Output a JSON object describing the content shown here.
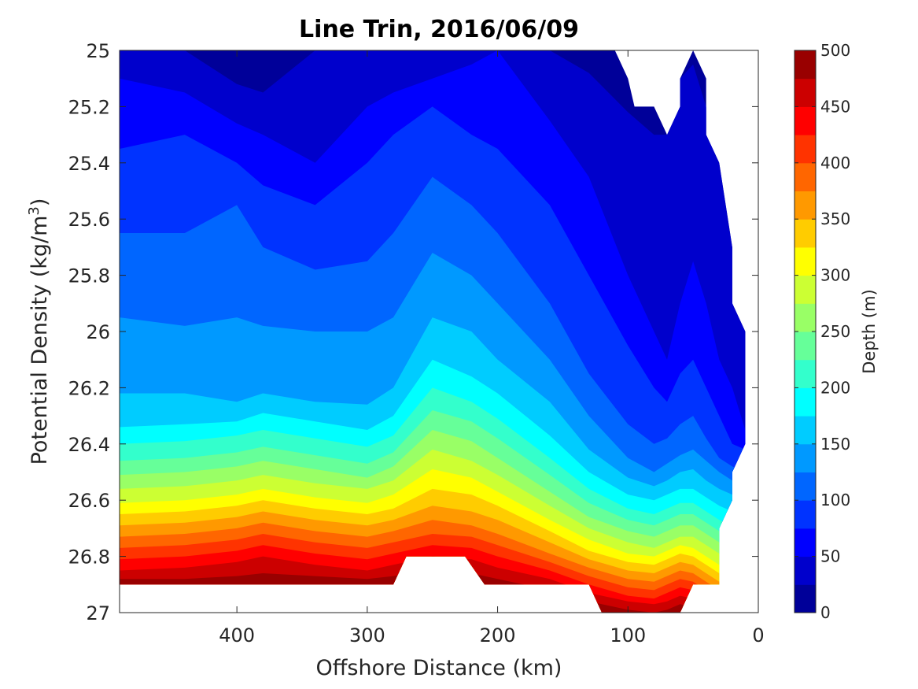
{
  "chart_data": {
    "type": "heatmap",
    "subtype": "filled-contour",
    "title": "Line Trin, 2016/06/09",
    "xlabel": "Offshore Distance (km)",
    "ylabel": "Potential Density (kg/m3)",
    "ylabel_main": "Potential Density (kg/m",
    "ylabel_sup": "3",
    "ylabel_close": ")",
    "x_reversed": true,
    "y_reversed": true,
    "xlim": [
      490,
      0
    ],
    "ylim": [
      25,
      27
    ],
    "xticks": [
      400,
      300,
      200,
      100,
      0
    ],
    "yticks": [
      "25",
      "25.2",
      "25.4",
      "25.6",
      "25.8",
      "26",
      "26.2",
      "26.4",
      "26.6",
      "26.8",
      "27"
    ],
    "grid": false,
    "colorbar": {
      "label": "Depth (m)",
      "range": [
        0,
        500
      ],
      "levels": 20,
      "ticks": [
        0,
        50,
        100,
        150,
        200,
        250,
        300,
        350,
        400,
        450,
        500
      ],
      "colormap": "jet"
    },
    "x": [
      490,
      440,
      400,
      380,
      340,
      300,
      280,
      250,
      220,
      200,
      160,
      130,
      100,
      80,
      70,
      60,
      50,
      40,
      30,
      20,
      10
    ],
    "depth_contours": [
      {
        "depth": 25,
        "y": [
          25.0,
          25.0,
          25.12,
          25.15,
          25.0,
          25.0,
          25.0,
          25.0,
          25.0,
          25.0,
          25.0,
          25.08,
          25.22,
          25.3,
          25.3,
          25.1,
          25.05,
          25.2,
          25.4,
          25.7,
          25.9
        ]
      },
      {
        "depth": 50,
        "y": [
          25.1,
          25.15,
          25.26,
          25.3,
          25.4,
          25.2,
          25.15,
          25.1,
          25.05,
          25.0,
          25.25,
          25.45,
          25.8,
          26.0,
          26.1,
          25.9,
          25.75,
          25.9,
          26.1,
          26.2,
          26.35
        ]
      },
      {
        "depth": 75,
        "y": [
          25.35,
          25.3,
          25.4,
          25.48,
          25.55,
          25.4,
          25.3,
          25.2,
          25.3,
          25.35,
          25.55,
          25.8,
          26.05,
          26.2,
          26.25,
          26.15,
          26.1,
          26.2,
          26.3,
          26.4,
          26.42
        ]
      },
      {
        "depth": 100,
        "y": [
          25.65,
          25.65,
          25.55,
          25.7,
          25.78,
          25.75,
          25.65,
          25.45,
          25.55,
          25.65,
          25.9,
          26.15,
          26.33,
          26.4,
          26.38,
          26.33,
          26.3,
          26.38,
          26.45,
          26.48,
          26.5
        ]
      },
      {
        "depth": 125,
        "y": [
          25.95,
          25.98,
          25.95,
          25.98,
          26.0,
          26.0,
          25.95,
          25.72,
          25.8,
          25.9,
          26.1,
          26.3,
          26.45,
          26.5,
          26.47,
          26.44,
          26.42,
          26.46,
          26.5,
          26.53,
          26.55
        ]
      },
      {
        "depth": 150,
        "y": [
          26.22,
          26.22,
          26.25,
          26.22,
          26.25,
          26.26,
          26.2,
          25.95,
          26.0,
          26.1,
          26.25,
          26.42,
          26.52,
          26.55,
          26.53,
          26.5,
          26.49,
          26.53,
          26.56,
          26.58,
          26.6
        ]
      },
      {
        "depth": 175,
        "y": [
          26.34,
          26.33,
          26.32,
          26.29,
          26.32,
          26.35,
          26.3,
          26.1,
          26.16,
          26.22,
          26.37,
          26.5,
          26.58,
          26.6,
          26.58,
          26.56,
          26.56,
          26.59,
          26.62,
          26.64,
          26.66
        ]
      },
      {
        "depth": 200,
        "y": [
          26.4,
          26.39,
          26.37,
          26.35,
          26.38,
          26.41,
          26.37,
          26.2,
          26.25,
          26.31,
          26.45,
          26.56,
          26.63,
          26.65,
          26.63,
          26.61,
          26.61,
          26.64,
          26.67,
          26.69,
          26.71
        ]
      },
      {
        "depth": 225,
        "y": [
          26.46,
          26.45,
          26.43,
          26.41,
          26.44,
          26.47,
          26.43,
          26.28,
          26.32,
          26.38,
          26.51,
          26.61,
          26.67,
          26.69,
          26.67,
          26.65,
          26.65,
          26.68,
          26.71,
          26.73,
          26.75
        ]
      },
      {
        "depth": 250,
        "y": [
          26.51,
          26.5,
          26.48,
          26.46,
          26.49,
          26.52,
          26.48,
          26.35,
          26.39,
          26.45,
          26.57,
          26.66,
          26.71,
          26.73,
          26.71,
          26.69,
          26.69,
          26.72,
          26.75,
          26.77,
          26.79
        ]
      },
      {
        "depth": 275,
        "y": [
          26.56,
          26.55,
          26.53,
          26.51,
          26.54,
          26.56,
          26.53,
          26.42,
          26.46,
          26.51,
          26.62,
          26.7,
          26.75,
          26.77,
          26.75,
          26.73,
          26.73,
          26.76,
          26.79,
          26.81,
          26.83
        ]
      },
      {
        "depth": 300,
        "y": [
          26.61,
          26.6,
          26.58,
          26.56,
          26.59,
          26.61,
          26.58,
          26.49,
          26.52,
          26.57,
          26.67,
          26.74,
          26.79,
          26.8,
          26.78,
          26.76,
          26.77,
          26.8,
          26.83,
          26.85,
          26.87
        ]
      },
      {
        "depth": 325,
        "y": [
          26.65,
          26.64,
          26.62,
          26.6,
          26.63,
          26.65,
          26.63,
          26.56,
          26.58,
          26.62,
          26.71,
          26.78,
          26.82,
          26.83,
          26.81,
          26.79,
          26.8,
          26.83,
          26.86,
          26.88,
          26.9
        ]
      },
      {
        "depth": 350,
        "y": [
          26.69,
          26.68,
          26.66,
          26.64,
          26.67,
          26.69,
          26.67,
          26.62,
          26.64,
          26.67,
          26.75,
          26.81,
          26.85,
          26.86,
          26.84,
          26.82,
          26.83,
          26.86,
          26.89,
          26.91,
          26.93
        ]
      },
      {
        "depth": 375,
        "y": [
          26.73,
          26.72,
          26.7,
          26.68,
          26.71,
          26.73,
          26.71,
          26.67,
          26.69,
          26.72,
          26.79,
          26.84,
          26.88,
          26.89,
          26.87,
          26.85,
          26.86,
          26.89,
          26.92,
          26.94,
          26.96
        ]
      },
      {
        "depth": 400,
        "y": [
          26.77,
          26.76,
          26.74,
          26.72,
          26.75,
          26.77,
          26.75,
          26.72,
          26.73,
          26.76,
          26.82,
          26.87,
          26.91,
          26.92,
          26.9,
          26.88,
          26.89,
          26.92,
          26.95,
          26.97,
          26.99
        ]
      },
      {
        "depth": 425,
        "y": [
          26.81,
          26.8,
          26.78,
          26.76,
          26.79,
          26.81,
          26.79,
          26.76,
          26.77,
          26.8,
          26.85,
          26.9,
          26.94,
          26.95,
          26.93,
          26.91,
          26.92,
          26.95,
          26.98,
          27.0,
          27.02
        ]
      },
      {
        "depth": 450,
        "y": [
          26.85,
          26.84,
          26.82,
          26.8,
          26.83,
          26.85,
          26.83,
          26.8,
          26.81,
          26.84,
          26.88,
          26.93,
          26.96,
          26.97,
          26.96,
          26.94,
          26.95,
          26.98,
          27.01,
          27.03,
          27.05
        ]
      },
      {
        "depth": 475,
        "y": [
          26.88,
          26.88,
          26.87,
          26.86,
          26.87,
          26.88,
          26.87,
          26.85,
          26.86,
          26.88,
          26.92,
          26.96,
          26.99,
          27.0,
          26.99,
          26.97,
          26.98,
          27.01,
          27.04,
          27.06,
          27.08
        ]
      }
    ],
    "data_bottom": [
      {
        "x": 490,
        "y": 26.9
      },
      {
        "x": 280,
        "y": 26.9
      },
      {
        "x": 270,
        "y": 26.8
      },
      {
        "x": 225,
        "y": 26.8
      },
      {
        "x": 210,
        "y": 26.9
      },
      {
        "x": 130,
        "y": 26.9
      },
      {
        "x": 120,
        "y": 27.0
      },
      {
        "x": 60,
        "y": 27.0
      },
      {
        "x": 50,
        "y": 26.9
      },
      {
        "x": 30,
        "y": 26.9
      },
      {
        "x": 30,
        "y": 26.7
      },
      {
        "x": 20,
        "y": 26.6
      },
      {
        "x": 20,
        "y": 26.5
      },
      {
        "x": 10,
        "y": 26.4
      }
    ],
    "data_top": [
      {
        "x": 10,
        "y": 26.4
      },
      {
        "x": 10,
        "y": 26.0
      },
      {
        "x": 20,
        "y": 25.9
      },
      {
        "x": 20,
        "y": 25.7
      },
      {
        "x": 30,
        "y": 25.4
      },
      {
        "x": 40,
        "y": 25.3
      },
      {
        "x": 40,
        "y": 25.1
      },
      {
        "x": 50,
        "y": 25.0
      },
      {
        "x": 60,
        "y": 25.1
      },
      {
        "x": 60,
        "y": 25.2
      },
      {
        "x": 70,
        "y": 25.3
      },
      {
        "x": 80,
        "y": 25.2
      },
      {
        "x": 95,
        "y": 25.2
      },
      {
        "x": 100,
        "y": 25.1
      },
      {
        "x": 110,
        "y": 25.0
      },
      {
        "x": 490,
        "y": 25.0
      }
    ]
  }
}
